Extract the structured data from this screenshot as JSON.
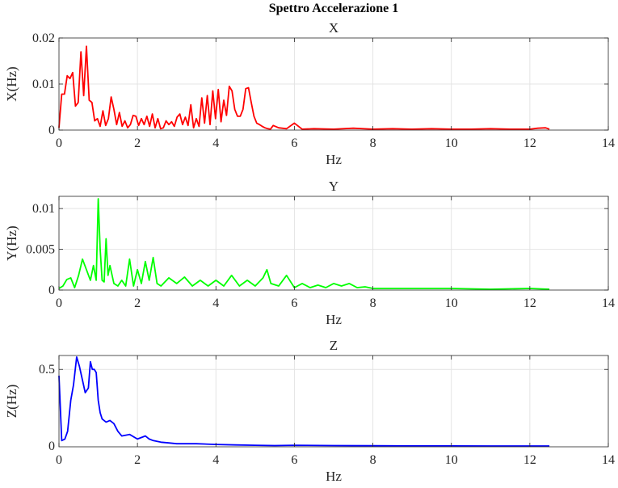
{
  "figure": {
    "suptitle": "Spettro Accelerazione 1"
  },
  "chart_data": [
    {
      "type": "line",
      "title": "X",
      "xlabel": "Hz",
      "ylabel": "X(Hz)",
      "xlim": [
        0,
        14
      ],
      "ylim": [
        0,
        0.02
      ],
      "xticks": [
        0,
        2,
        4,
        6,
        8,
        10,
        12,
        14
      ],
      "yticks": [
        0,
        0.01,
        0.02
      ],
      "ytick_labels": [
        "0",
        "0.01",
        "0.02"
      ],
      "grid": true,
      "color": "#ff0000",
      "series": [
        {
          "x": [
            0,
            0.07,
            0.14,
            0.21,
            0.28,
            0.35,
            0.42,
            0.49,
            0.56,
            0.63,
            0.7,
            0.77,
            0.84,
            0.91,
            0.98,
            1.05,
            1.12,
            1.19,
            1.26,
            1.33,
            1.4,
            1.47,
            1.54,
            1.61,
            1.68,
            1.75,
            1.82,
            1.89,
            1.96,
            2.03,
            2.1,
            2.17,
            2.24,
            2.31,
            2.38,
            2.45,
            2.52,
            2.59,
            2.66,
            2.73,
            2.8,
            2.87,
            2.94,
            3.01,
            3.08,
            3.15,
            3.22,
            3.29,
            3.36,
            3.43,
            3.5,
            3.57,
            3.64,
            3.71,
            3.78,
            3.85,
            3.92,
            3.99,
            4.06,
            4.13,
            4.2,
            4.27,
            4.34,
            4.41,
            4.48,
            4.55,
            4.62,
            4.69,
            4.76,
            4.83,
            4.9,
            4.97,
            5.04,
            5.11,
            5.18,
            5.25,
            5.32,
            5.39,
            5.46,
            5.6,
            5.8,
            6.0,
            6.2,
            6.5,
            7.0,
            7.5,
            8.0,
            8.5,
            9.0,
            9.5,
            10.0,
            10.5,
            11.0,
            11.5,
            12.0,
            12.2,
            12.4,
            12.5
          ],
          "y": [
            0.0005,
            0.0078,
            0.0078,
            0.0118,
            0.0112,
            0.0125,
            0.0052,
            0.006,
            0.017,
            0.0075,
            0.0182,
            0.0065,
            0.006,
            0.002,
            0.0025,
            0.0008,
            0.0042,
            0.001,
            0.0025,
            0.0072,
            0.0045,
            0.0012,
            0.0038,
            0.0008,
            0.002,
            0.0005,
            0.0012,
            0.0032,
            0.003,
            0.001,
            0.0025,
            0.0012,
            0.003,
            0.0008,
            0.0035,
            0.0005,
            0.0025,
            0.0003,
            0.0005,
            0.002,
            0.0012,
            0.0018,
            0.0008,
            0.0028,
            0.0035,
            0.0012,
            0.0028,
            0.001,
            0.0055,
            0.0005,
            0.0025,
            0.0008,
            0.007,
            0.0015,
            0.0075,
            0.0012,
            0.0085,
            0.0025,
            0.0088,
            0.0018,
            0.0065,
            0.0032,
            0.0095,
            0.0085,
            0.0045,
            0.003,
            0.003,
            0.0045,
            0.009,
            0.0092,
            0.006,
            0.003,
            0.0015,
            0.0012,
            0.0008,
            0.0005,
            0.0003,
            0.0002,
            0.001,
            0.0005,
            0.0003,
            0.0015,
            0.0002,
            0.0003,
            0.0002,
            0.0004,
            0.0002,
            0.0003,
            0.0002,
            0.0003,
            0.0002,
            0.0002,
            0.0003,
            0.0002,
            0.0002,
            0.0004,
            0.0005,
            0.0002
          ]
        }
      ]
    },
    {
      "type": "line",
      "title": "Y",
      "xlabel": "Hz",
      "ylabel": "Y(Hz)",
      "xlim": [
        0,
        14
      ],
      "ylim": [
        0,
        0.0115
      ],
      "xticks": [
        0,
        2,
        4,
        6,
        8,
        10,
        12,
        14
      ],
      "yticks": [
        0,
        0.005,
        0.01
      ],
      "ytick_labels": [
        "0",
        "0.005",
        "0.01"
      ],
      "grid": true,
      "color": "#00ff00",
      "series": [
        {
          "x": [
            0,
            0.1,
            0.2,
            0.3,
            0.4,
            0.5,
            0.6,
            0.7,
            0.8,
            0.88,
            0.95,
            1.0,
            1.05,
            1.1,
            1.15,
            1.2,
            1.25,
            1.3,
            1.4,
            1.5,
            1.6,
            1.7,
            1.8,
            1.9,
            2.0,
            2.1,
            2.2,
            2.3,
            2.4,
            2.5,
            2.6,
            2.8,
            3.0,
            3.2,
            3.4,
            3.6,
            3.8,
            4.0,
            4.2,
            4.4,
            4.6,
            4.8,
            5.0,
            5.2,
            5.3,
            5.4,
            5.6,
            5.8,
            6.0,
            6.2,
            6.4,
            6.6,
            6.8,
            7.0,
            7.2,
            7.4,
            7.6,
            7.8,
            8.0,
            8.5,
            9.0,
            10.0,
            11.0,
            12.0,
            12.5
          ],
          "y": [
            0.0002,
            0.0005,
            0.0013,
            0.0015,
            0.0003,
            0.0018,
            0.0038,
            0.0025,
            0.0012,
            0.003,
            0.0012,
            0.0112,
            0.005,
            0.0012,
            0.001,
            0.0063,
            0.0018,
            0.003,
            0.0008,
            0.0005,
            0.0012,
            0.0005,
            0.0038,
            0.0005,
            0.0025,
            0.0008,
            0.0035,
            0.0012,
            0.004,
            0.0008,
            0.0005,
            0.0015,
            0.0008,
            0.0016,
            0.0005,
            0.0012,
            0.0005,
            0.0012,
            0.0005,
            0.0018,
            0.0005,
            0.0012,
            0.0005,
            0.0015,
            0.0025,
            0.0008,
            0.0005,
            0.0018,
            0.0003,
            0.0008,
            0.0003,
            0.0006,
            0.0003,
            0.0008,
            0.0005,
            0.0008,
            0.0003,
            0.0004,
            0.0002,
            0.0002,
            0.0002,
            0.0002,
            0.0001,
            0.0002,
            0.0001
          ]
        }
      ]
    },
    {
      "type": "line",
      "title": "Z",
      "xlabel": "Hz",
      "ylabel": "Z(Hz)",
      "xlim": [
        0,
        14
      ],
      "ylim": [
        0,
        0.59
      ],
      "xticks": [
        0,
        2,
        4,
        6,
        8,
        10,
        12,
        14
      ],
      "yticks": [
        0.5
      ],
      "ytick_labels": [
        "0.5"
      ],
      "extra_ytick_zero": "0",
      "grid": true,
      "color": "#0000ff",
      "series": [
        {
          "x": [
            0,
            0.07,
            0.15,
            0.22,
            0.3,
            0.37,
            0.45,
            0.52,
            0.6,
            0.67,
            0.75,
            0.8,
            0.85,
            0.9,
            0.95,
            1.0,
            1.05,
            1.1,
            1.2,
            1.3,
            1.4,
            1.5,
            1.6,
            1.8,
            2.0,
            2.1,
            2.2,
            2.3,
            2.4,
            2.6,
            2.8,
            3.0,
            3.2,
            3.5,
            4.0,
            4.5,
            5.0,
            5.5,
            6.0,
            7.0,
            8.0,
            9.0,
            10.0,
            11.0,
            12.0,
            12.5
          ],
          "y": [
            0.46,
            0.04,
            0.05,
            0.1,
            0.3,
            0.4,
            0.58,
            0.52,
            0.43,
            0.35,
            0.38,
            0.55,
            0.5,
            0.5,
            0.48,
            0.3,
            0.22,
            0.18,
            0.16,
            0.17,
            0.15,
            0.1,
            0.07,
            0.08,
            0.05,
            0.06,
            0.07,
            0.05,
            0.04,
            0.03,
            0.025,
            0.02,
            0.02,
            0.02,
            0.015,
            0.012,
            0.01,
            0.008,
            0.01,
            0.008,
            0.007,
            0.006,
            0.006,
            0.005,
            0.005,
            0.005
          ]
        }
      ]
    }
  ]
}
